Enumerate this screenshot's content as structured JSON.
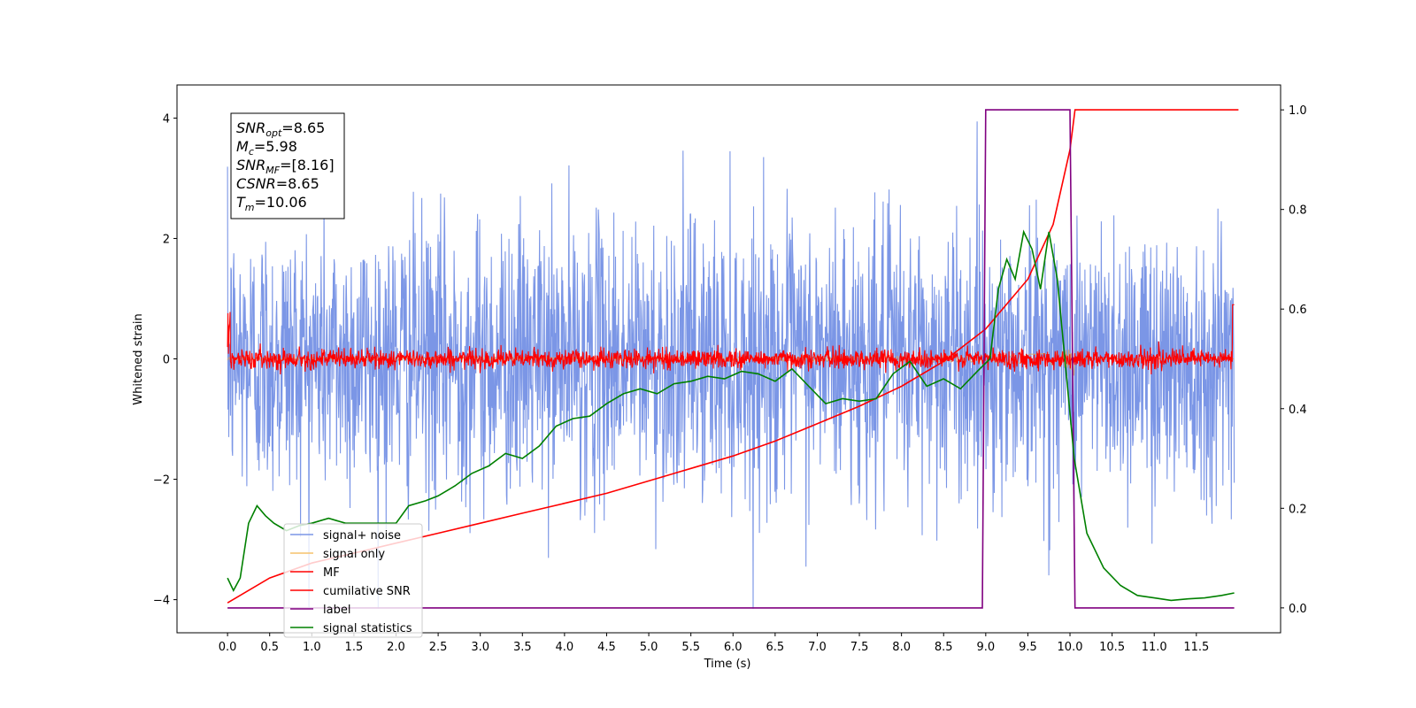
{
  "chart_data": {
    "type": "line",
    "xlabel": "Time (s)",
    "ylabel": "Whitened strain",
    "xlim": [
      -0.6,
      12.5
    ],
    "ylim": [
      -4.55,
      4.55
    ],
    "y2lim": [
      -0.05,
      1.05
    ],
    "x_ticks": [
      "0.0",
      "0.5",
      "1.0",
      "1.5",
      "2.0",
      "2.5",
      "3.0",
      "3.5",
      "4.0",
      "4.5",
      "5.0",
      "5.5",
      "6.0",
      "6.5",
      "7.0",
      "7.5",
      "8.0",
      "8.5",
      "9.0",
      "9.5",
      "10.0",
      "10.5",
      "11.0",
      "11.5"
    ],
    "y_ticks": [
      "4",
      "2",
      "0",
      "−2",
      "−4"
    ],
    "y2_ticks": [
      "1.0",
      "0.8",
      "0.6",
      "0.4",
      "0.2",
      "0.0"
    ],
    "legend_position": "lower-left",
    "info_box": [
      {
        "label": "SNR",
        "sub": "opt",
        "value": "=8.65"
      },
      {
        "label": "M",
        "sub": "c",
        "value": "=5.98"
      },
      {
        "label": "SNR",
        "sub": "MF",
        "value": "=[8.16]"
      },
      {
        "label": "CSNR",
        "sub": "",
        "value": "=8.65"
      },
      {
        "label": "T",
        "sub": "m",
        "value": "=10.06"
      }
    ],
    "series": [
      {
        "name": "signal+ noise",
        "color": "#7b96e6",
        "axis": "left",
        "description_amplitude_band": [
          -3.0,
          3.0
        ]
      },
      {
        "name": "signal only",
        "color": "#f5c26b",
        "axis": "left",
        "chirp_end": 10.06
      },
      {
        "name": "MF",
        "color": "#ff0000",
        "axis": "left",
        "band": [
          -0.2,
          0.25
        ]
      },
      {
        "name": "cumilative SNR",
        "color": "#ff0000",
        "axis": "right",
        "x": [
          0.0,
          0.5,
          1.0,
          1.5,
          2.0,
          2.5,
          3.0,
          3.5,
          4.0,
          4.5,
          5.0,
          5.5,
          6.0,
          6.5,
          7.0,
          7.5,
          8.0,
          8.5,
          9.0,
          9.5,
          9.8,
          10.0,
          10.06,
          12.0
        ],
        "y": [
          0.01,
          0.06,
          0.09,
          0.11,
          0.13,
          0.15,
          0.17,
          0.19,
          0.21,
          0.23,
          0.255,
          0.28,
          0.305,
          0.335,
          0.37,
          0.405,
          0.445,
          0.495,
          0.56,
          0.66,
          0.77,
          0.92,
          1.0,
          1.0
        ]
      },
      {
        "name": "label",
        "color": "#800080",
        "axis": "right",
        "x": [
          0.0,
          8.96,
          9.0,
          10.0,
          10.06,
          11.95
        ],
        "y": [
          0.0,
          0.0,
          1.0,
          1.0,
          0.0,
          0.0
        ]
      },
      {
        "name": "signal statistics",
        "color": "#008000",
        "axis": "right",
        "x": [
          0.0,
          0.07,
          0.15,
          0.25,
          0.35,
          0.45,
          0.55,
          0.7,
          0.85,
          1.0,
          1.2,
          1.4,
          1.6,
          1.8,
          2.0,
          2.15,
          2.35,
          2.5,
          2.7,
          2.9,
          3.1,
          3.3,
          3.5,
          3.7,
          3.9,
          4.1,
          4.3,
          4.5,
          4.7,
          4.9,
          5.1,
          5.3,
          5.5,
          5.7,
          5.9,
          6.1,
          6.3,
          6.5,
          6.7,
          6.9,
          7.1,
          7.3,
          7.5,
          7.7,
          7.9,
          8.1,
          8.3,
          8.5,
          8.7,
          8.9,
          9.05,
          9.15,
          9.25,
          9.35,
          9.45,
          9.55,
          9.65,
          9.75,
          9.85,
          9.95,
          10.05,
          10.2,
          10.4,
          10.6,
          10.8,
          11.0,
          11.2,
          11.4,
          11.6,
          11.8,
          11.95
        ],
        "y": [
          0.06,
          0.035,
          0.06,
          0.17,
          0.205,
          0.185,
          0.17,
          0.155,
          0.165,
          0.17,
          0.18,
          0.17,
          0.17,
          0.17,
          0.17,
          0.205,
          0.215,
          0.225,
          0.245,
          0.27,
          0.285,
          0.31,
          0.3,
          0.325,
          0.365,
          0.38,
          0.385,
          0.41,
          0.43,
          0.44,
          0.43,
          0.45,
          0.455,
          0.465,
          0.46,
          0.475,
          0.47,
          0.455,
          0.48,
          0.445,
          0.41,
          0.42,
          0.415,
          0.42,
          0.47,
          0.495,
          0.445,
          0.46,
          0.44,
          0.475,
          0.5,
          0.64,
          0.7,
          0.66,
          0.755,
          0.72,
          0.64,
          0.755,
          0.66,
          0.48,
          0.3,
          0.15,
          0.08,
          0.045,
          0.025,
          0.02,
          0.015,
          0.018,
          0.02,
          0.025,
          0.03
        ]
      }
    ]
  }
}
